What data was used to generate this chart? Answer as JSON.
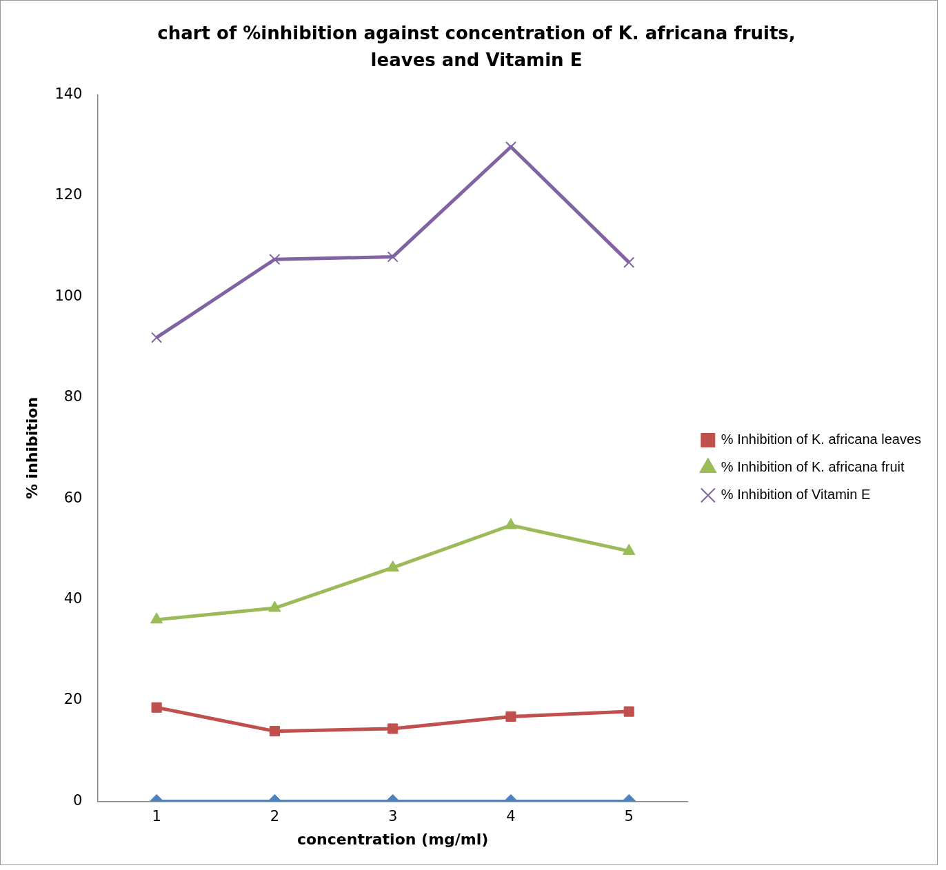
{
  "chart_data": {
    "type": "line",
    "title": "chart of %inhibition against concentration of K. africana fruits, leaves and Vitamin E",
    "xlabel": "concentration (mg/ml)",
    "ylabel": "% inhibition",
    "categories": [
      "1",
      "2",
      "3",
      "4",
      "5"
    ],
    "series": [
      {
        "color": "#4f81bd",
        "marker": "diamond",
        "values": [
          0,
          0,
          0,
          0,
          0
        ]
      },
      {
        "name": "% Inhibition of K. africana leaves",
        "color": "#c0504d",
        "marker": "square",
        "values": [
          18.6,
          13.9,
          14.4,
          16.8,
          17.8
        ]
      },
      {
        "name": "% Inhibition of K. africana fruit",
        "color": "#9bbb59",
        "marker": "triangle",
        "values": [
          36.0,
          38.3,
          46.3,
          54.7,
          49.6
        ]
      },
      {
        "name": "% Inhibition of Vitamin E",
        "color": "#8064a2",
        "marker": "cross",
        "values": [
          91.9,
          107.4,
          107.9,
          129.7,
          106.8
        ]
      }
    ],
    "ylim": [
      0,
      140
    ],
    "yticks": [
      0,
      20,
      40,
      60,
      80,
      100,
      120,
      140
    ],
    "grid": false,
    "legend": "right",
    "line_style": "solid"
  }
}
